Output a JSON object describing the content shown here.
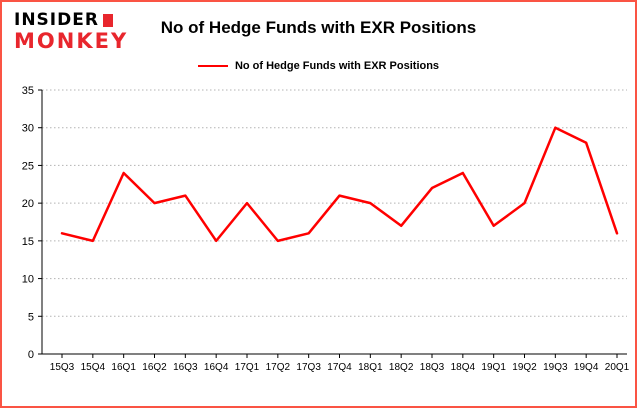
{
  "branding": {
    "logo_line1": "INSIDER",
    "logo_line2": "MONKEY",
    "accent_color": "#e8262d"
  },
  "header": {
    "title": "No of Hedge Funds with EXR Positions"
  },
  "legend": {
    "label": "No of Hedge Funds with EXR Positions"
  },
  "colors": {
    "frame": "#fa5444",
    "line": "#ff0000",
    "grid": "#b3b3b3",
    "axis": "#000000"
  },
  "chart_data": {
    "type": "line",
    "title": "No of Hedge Funds with EXR Positions",
    "categories": [
      "15Q3",
      "15Q4",
      "16Q1",
      "16Q2",
      "16Q3",
      "16Q4",
      "17Q1",
      "17Q2",
      "17Q3",
      "17Q4",
      "18Q1",
      "18Q2",
      "18Q3",
      "18Q4",
      "19Q1",
      "19Q2",
      "19Q3",
      "19Q4",
      "20Q1"
    ],
    "values": [
      16,
      15,
      24,
      20,
      21,
      15,
      20,
      15,
      16,
      21,
      20,
      17,
      22,
      24,
      17,
      20,
      30,
      28,
      16
    ],
    "xlabel": "",
    "ylabel": "",
    "ylim": [
      0,
      35
    ],
    "yticks": [
      0,
      5,
      10,
      15,
      20,
      25,
      30,
      35
    ],
    "grid": true,
    "grid_style": "dotted",
    "line_color": "#ff0000",
    "legend_position": "top"
  }
}
